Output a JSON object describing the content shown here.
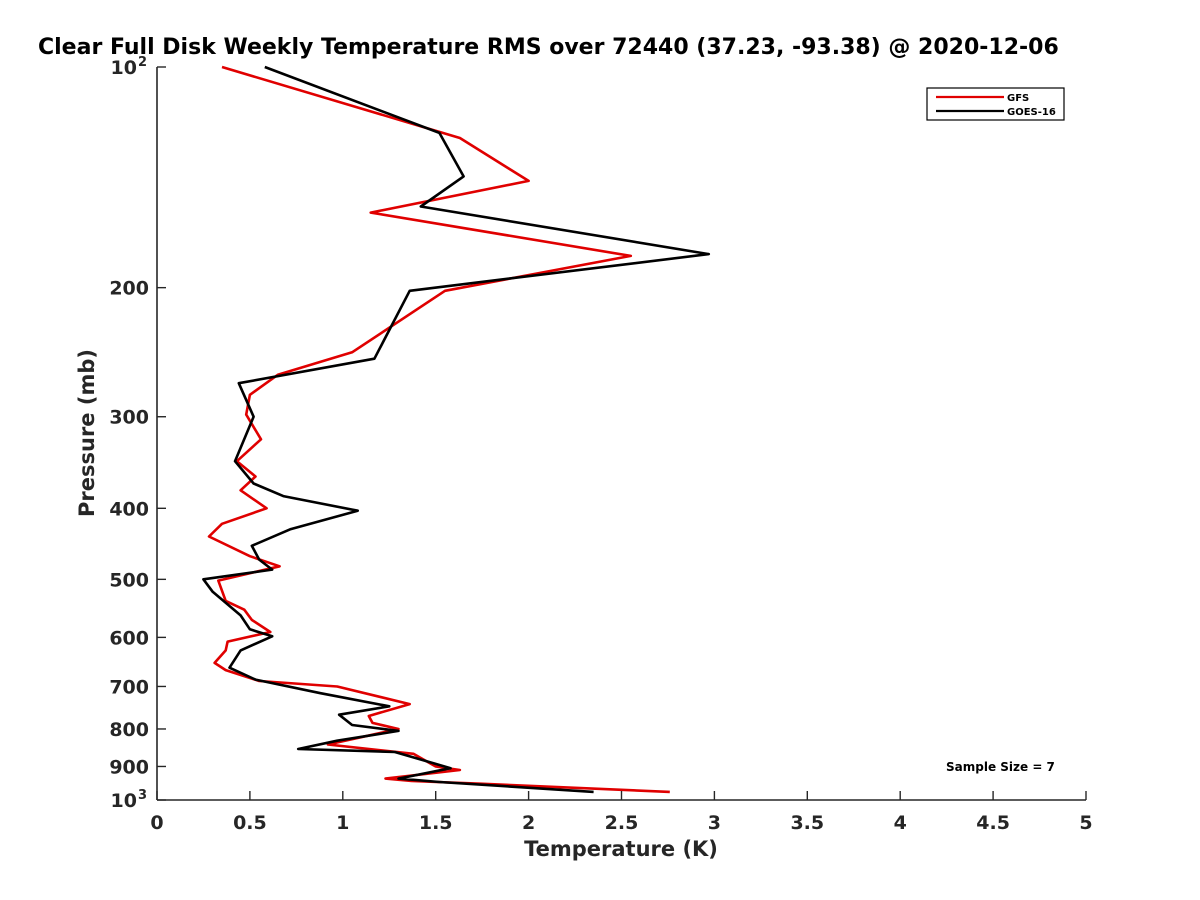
{
  "chart_data": {
    "type": "line",
    "title": "Clear Full Disk Weekly Temperature RMS over 72440 (37.23, -93.38) @ 2020-12-06",
    "xlabel": "Temperature (K)",
    "ylabel": "Pressure (mb)",
    "xlim": [
      0,
      5
    ],
    "ylim": [
      100,
      1000
    ],
    "y_scale": "log",
    "y_reversed": true,
    "x_ticks": [
      "0",
      "0.5",
      "1",
      "1.5",
      "2",
      "2.5",
      "3",
      "3.5",
      "4",
      "4.5",
      "5"
    ],
    "y_ticks": [
      {
        "value": 100,
        "label": "10",
        "exp": "2"
      },
      {
        "value": 200,
        "label": "200"
      },
      {
        "value": 300,
        "label": "300"
      },
      {
        "value": 400,
        "label": "400"
      },
      {
        "value": 500,
        "label": "500"
      },
      {
        "value": 600,
        "label": "600"
      },
      {
        "value": 700,
        "label": "700"
      },
      {
        "value": 800,
        "label": "800"
      },
      {
        "value": 900,
        "label": "900"
      },
      {
        "value": 1000,
        "label": "10",
        "exp": "3"
      }
    ],
    "grid": false,
    "legend_position": "top-right",
    "annotation": "Sample Size = 7",
    "series": [
      {
        "name": "GFS",
        "color": "#e00000",
        "points": [
          [
            0.35,
            100
          ],
          [
            1.63,
            125
          ],
          [
            2.0,
            143
          ],
          [
            1.15,
            158
          ],
          [
            2.55,
            181
          ],
          [
            1.55,
            202
          ],
          [
            1.05,
            245
          ],
          [
            0.65,
            263
          ],
          [
            0.5,
            280
          ],
          [
            0.48,
            298
          ],
          [
            0.56,
            322
          ],
          [
            0.43,
            345
          ],
          [
            0.53,
            362
          ],
          [
            0.45,
            378
          ],
          [
            0.59,
            400
          ],
          [
            0.35,
            420
          ],
          [
            0.28,
            437
          ],
          [
            0.5,
            465
          ],
          [
            0.66,
            480
          ],
          [
            0.33,
            502
          ],
          [
            0.37,
            535
          ],
          [
            0.47,
            550
          ],
          [
            0.51,
            568
          ],
          [
            0.61,
            590
          ],
          [
            0.38,
            608
          ],
          [
            0.37,
            625
          ],
          [
            0.31,
            650
          ],
          [
            0.37,
            665
          ],
          [
            0.55,
            688
          ],
          [
            0.97,
            700
          ],
          [
            1.36,
            740
          ],
          [
            1.14,
            768
          ],
          [
            1.16,
            785
          ],
          [
            1.3,
            800
          ],
          [
            0.92,
            840
          ],
          [
            1.38,
            865
          ],
          [
            1.5,
            900
          ],
          [
            1.63,
            910
          ],
          [
            1.23,
            935
          ],
          [
            1.37,
            942
          ],
          [
            1.74,
            950
          ],
          [
            2.76,
            975
          ]
        ]
      },
      {
        "name": "GOES-16",
        "color": "#000000",
        "points": [
          [
            0.58,
            100
          ],
          [
            1.52,
            123
          ],
          [
            1.65,
            141
          ],
          [
            1.42,
            155
          ],
          [
            2.97,
            180
          ],
          [
            1.36,
            202
          ],
          [
            1.17,
            250
          ],
          [
            0.44,
            270
          ],
          [
            0.52,
            300
          ],
          [
            0.42,
            345
          ],
          [
            0.52,
            370
          ],
          [
            0.68,
            385
          ],
          [
            1.08,
            403
          ],
          [
            0.72,
            427
          ],
          [
            0.51,
            450
          ],
          [
            0.55,
            470
          ],
          [
            0.62,
            485
          ],
          [
            0.25,
            500
          ],
          [
            0.3,
            520
          ],
          [
            0.45,
            560
          ],
          [
            0.5,
            585
          ],
          [
            0.62,
            598
          ],
          [
            0.45,
            625
          ],
          [
            0.39,
            660
          ],
          [
            0.53,
            685
          ],
          [
            0.88,
            715
          ],
          [
            1.25,
            745
          ],
          [
            0.98,
            765
          ],
          [
            1.05,
            790
          ],
          [
            1.3,
            805
          ],
          [
            0.97,
            830
          ],
          [
            0.76,
            852
          ],
          [
            1.28,
            860
          ],
          [
            1.58,
            905
          ],
          [
            1.3,
            935
          ],
          [
            1.52,
            945
          ],
          [
            2.35,
            975
          ]
        ]
      }
    ]
  }
}
